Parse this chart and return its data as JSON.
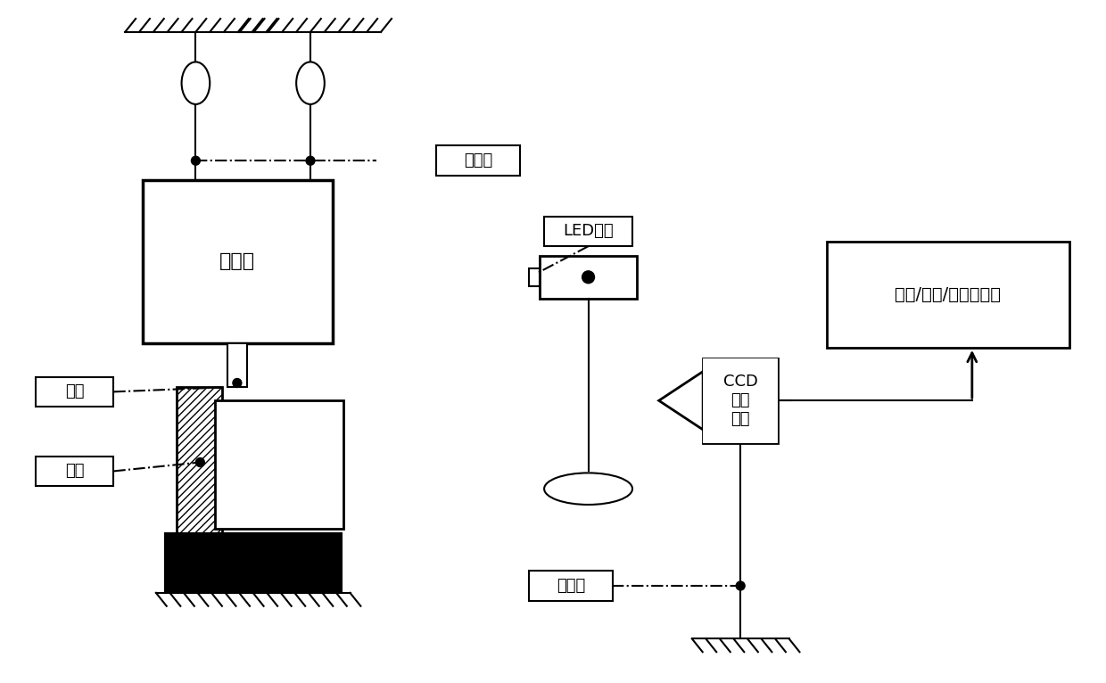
{
  "bg_color": "#ffffff",
  "line_color": "#000000",
  "labels": {
    "jizhen": "弹性绳",
    "jizhenqi": "激振器",
    "yuantong": "圆筒",
    "jiaju": "夹具",
    "led": "LED光源",
    "ccd": "CCD\n工业\n相机",
    "sanjia": "三脚架",
    "computer": "分析/控制/显示计算机"
  },
  "figsize": [
    12.4,
    7.66
  ],
  "dpi": 100
}
